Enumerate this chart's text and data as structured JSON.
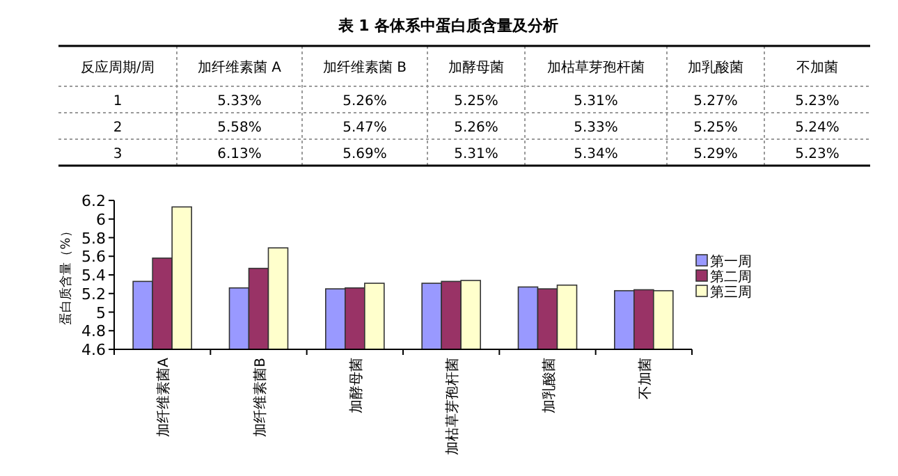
{
  "chart_data": [
    {
      "type": "other",
      "title": "表 1 各体系中蛋白质含量及分析",
      "categories": [
        "反应周期/周",
        "加纤维素菌 A",
        "加纤维素菌 B",
        "加酵母菌",
        "加枯草芽孢杆菌",
        "加乳酸菌",
        "不加菌"
      ],
      "annotations": [
        "1",
        "5.33%",
        "5.26%",
        "5.25%",
        "5.31%",
        "5.27%",
        "5.23%",
        "2",
        "5.58%",
        "5.47%",
        "5.26%",
        "5.33%",
        "5.25%",
        "5.24%",
        "3",
        "6.13%",
        "5.69%",
        "5.31%",
        "5.34%",
        "5.29%",
        "5.23%"
      ]
    },
    {
      "type": "bar",
      "ylabel": "蛋白质含量（%）",
      "categories": [
        "加纤维素菌A",
        "加纤维素菌B",
        "加酵母菌",
        "加枯草芽孢杆菌",
        "加乳酸菌",
        "不加菌"
      ],
      "series": [
        {
          "name": "第一周",
          "color": "#9999ff",
          "values": [
            5.33,
            5.26,
            5.25,
            5.31,
            5.27,
            5.23
          ]
        },
        {
          "name": "第二周",
          "color": "#993366",
          "values": [
            5.58,
            5.47,
            5.26,
            5.33,
            5.25,
            5.24
          ]
        },
        {
          "name": "第三周",
          "color": "#ffffcc",
          "values": [
            6.13,
            5.69,
            5.31,
            5.34,
            5.29,
            5.23
          ]
        }
      ],
      "ylim": [
        4.6,
        6.2
      ],
      "yticks": [
        4.6,
        4.8,
        5,
        5.2,
        5.4,
        5.6,
        5.8,
        6,
        6.2
      ],
      "grid": false,
      "legend": "right"
    }
  ]
}
